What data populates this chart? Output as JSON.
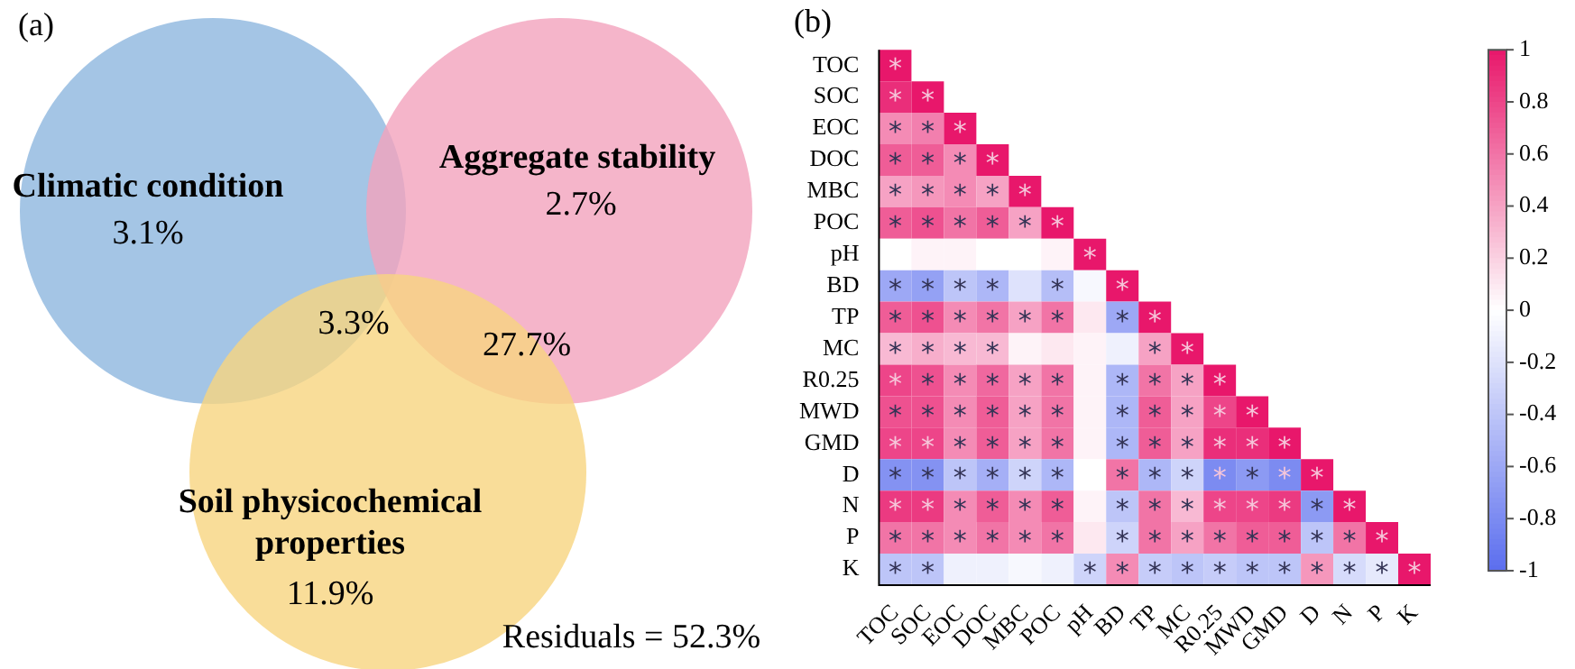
{
  "chart_data": [
    {
      "type": "other",
      "title": "(a)",
      "annotations": [
        "Climatic condition",
        "3.1%",
        "Aggregate stability",
        "2.7%",
        "3.3%",
        "27.7%",
        "Soil physicochemical properties",
        "11.9%",
        "Residuals = 52.3%"
      ]
    },
    {
      "type": "heatmap",
      "title": "(b)",
      "categories": [
        "TOC",
        "SOC",
        "EOC",
        "DOC",
        "MBC",
        "POC",
        "pH",
        "BD",
        "TP",
        "MC",
        "R0.25",
        "MWD",
        "GMD",
        "D",
        "N",
        "P",
        "K"
      ],
      "y_categories": [
        "TOC",
        "SOC",
        "EOC",
        "DOC",
        "MBC",
        "POC",
        "pH",
        "BD",
        "TP",
        "MC",
        "R0.25",
        "MWD",
        "GMD",
        "D",
        "N",
        "P",
        "K"
      ],
      "cells": [
        [
          1,
          null,
          null,
          null,
          null,
          null,
          null,
          null,
          null,
          null,
          null,
          null,
          null,
          null,
          null,
          null,
          null
        ],
        [
          0.9,
          1,
          null,
          null,
          null,
          null,
          null,
          null,
          null,
          null,
          null,
          null,
          null,
          null,
          null,
          null,
          null
        ],
        [
          0.5,
          0.55,
          1,
          null,
          null,
          null,
          null,
          null,
          null,
          null,
          null,
          null,
          null,
          null,
          null,
          null,
          null
        ],
        [
          0.7,
          0.7,
          0.5,
          1,
          null,
          null,
          null,
          null,
          null,
          null,
          null,
          null,
          null,
          null,
          null,
          null,
          null
        ],
        [
          0.4,
          0.45,
          0.5,
          0.4,
          1,
          null,
          null,
          null,
          null,
          null,
          null,
          null,
          null,
          null,
          null,
          null,
          null
        ],
        [
          0.7,
          0.75,
          0.6,
          0.7,
          0.4,
          1,
          null,
          null,
          null,
          null,
          null,
          null,
          null,
          null,
          null,
          null,
          null
        ],
        [
          0,
          0.05,
          0.05,
          0,
          0,
          0.05,
          1,
          null,
          null,
          null,
          null,
          null,
          null,
          null,
          null,
          null,
          null
        ],
        [
          -0.6,
          -0.65,
          -0.4,
          -0.5,
          -0.2,
          -0.45,
          -0.05,
          1,
          null,
          null,
          null,
          null,
          null,
          null,
          null,
          null,
          null
        ],
        [
          0.7,
          0.75,
          0.5,
          0.6,
          0.4,
          0.6,
          0.1,
          -0.6,
          1,
          null,
          null,
          null,
          null,
          null,
          null,
          null,
          null
        ],
        [
          0.3,
          0.35,
          0.3,
          0.3,
          0.05,
          0.1,
          0.05,
          -0.1,
          0.4,
          1,
          null,
          null,
          null,
          null,
          null,
          null,
          null
        ],
        [
          0.8,
          0.75,
          0.5,
          0.65,
          0.4,
          0.6,
          0.05,
          -0.5,
          0.6,
          0.4,
          1,
          null,
          null,
          null,
          null,
          null,
          null
        ],
        [
          0.75,
          0.75,
          0.5,
          0.7,
          0.4,
          0.6,
          0.05,
          -0.5,
          0.7,
          0.4,
          0.8,
          1,
          null,
          null,
          null,
          null,
          null
        ],
        [
          0.8,
          0.8,
          0.5,
          0.7,
          0.4,
          0.6,
          0.05,
          -0.5,
          0.7,
          0.4,
          0.9,
          0.9,
          1,
          null,
          null,
          null,
          null
        ],
        [
          -0.75,
          -0.75,
          -0.4,
          -0.55,
          -0.3,
          -0.5,
          0,
          0.6,
          -0.5,
          -0.3,
          -0.8,
          -0.7,
          -0.8,
          1,
          null,
          null,
          null
        ],
        [
          0.85,
          0.85,
          0.5,
          0.7,
          0.5,
          0.7,
          0.05,
          -0.4,
          0.6,
          0.3,
          0.8,
          0.8,
          0.85,
          -0.7,
          1,
          null,
          null
        ],
        [
          0.6,
          0.6,
          0.5,
          0.6,
          0.5,
          0.6,
          0.1,
          -0.3,
          0.6,
          0.4,
          0.6,
          0.7,
          0.7,
          -0.4,
          0.6,
          1,
          null
        ],
        [
          -0.4,
          -0.4,
          -0.1,
          -0.1,
          -0.05,
          -0.1,
          -0.3,
          0.5,
          -0.35,
          -0.4,
          -0.35,
          -0.4,
          -0.4,
          0.45,
          -0.25,
          -0.15,
          1
        ]
      ],
      "cell_labels": [
        [
          "*",
          null,
          null,
          null,
          null,
          null,
          null,
          null,
          null,
          null,
          null,
          null,
          null,
          null,
          null,
          null,
          null
        ],
        [
          "*",
          "*",
          null,
          null,
          null,
          null,
          null,
          null,
          null,
          null,
          null,
          null,
          null,
          null,
          null,
          null,
          null
        ],
        [
          "*",
          "*",
          "*",
          null,
          null,
          null,
          null,
          null,
          null,
          null,
          null,
          null,
          null,
          null,
          null,
          null,
          null
        ],
        [
          "*",
          "*",
          "*",
          "*",
          null,
          null,
          null,
          null,
          null,
          null,
          null,
          null,
          null,
          null,
          null,
          null,
          null
        ],
        [
          "*",
          "*",
          "*",
          "*",
          "*",
          null,
          null,
          null,
          null,
          null,
          null,
          null,
          null,
          null,
          null,
          null,
          null
        ],
        [
          "*",
          "*",
          "*",
          "*",
          "*",
          "*",
          null,
          null,
          null,
          null,
          null,
          null,
          null,
          null,
          null,
          null,
          null
        ],
        [
          null,
          null,
          null,
          null,
          null,
          null,
          "*",
          null,
          null,
          null,
          null,
          null,
          null,
          null,
          null,
          null,
          null
        ],
        [
          "*",
          "*",
          "*",
          "*",
          null,
          "*",
          null,
          "*",
          null,
          null,
          null,
          null,
          null,
          null,
          null,
          null,
          null
        ],
        [
          "*",
          "*",
          "*",
          "*",
          "*",
          "*",
          null,
          "*",
          "*",
          null,
          null,
          null,
          null,
          null,
          null,
          null,
          null
        ],
        [
          "*",
          "*",
          "*",
          "*",
          null,
          null,
          null,
          null,
          "*",
          "*",
          null,
          null,
          null,
          null,
          null,
          null,
          null
        ],
        [
          "*",
          "*",
          "*",
          "*",
          "*",
          "*",
          null,
          "*",
          "*",
          "*",
          "*",
          null,
          null,
          null,
          null,
          null,
          null
        ],
        [
          "*",
          "*",
          "*",
          "*",
          "*",
          "*",
          null,
          "*",
          "*",
          "*",
          "*",
          "*",
          null,
          null,
          null,
          null,
          null
        ],
        [
          "*",
          "*",
          "*",
          "*",
          "*",
          "*",
          null,
          "*",
          "*",
          "*",
          "*",
          "*",
          "*",
          null,
          null,
          null,
          null
        ],
        [
          "*",
          "*",
          "*",
          "*",
          "*",
          "*",
          null,
          "*",
          "*",
          "*",
          "*",
          "*",
          "*",
          "*",
          null,
          null,
          null
        ],
        [
          "*",
          "*",
          "*",
          "*",
          "*",
          "*",
          null,
          "*",
          "*",
          "*",
          "*",
          "*",
          "*",
          "*",
          "*",
          null,
          null
        ],
        [
          "*",
          "*",
          "*",
          "*",
          "*",
          "*",
          null,
          "*",
          "*",
          "*",
          "*",
          "*",
          "*",
          "*",
          "*",
          "*",
          null
        ],
        [
          "*",
          "*",
          null,
          null,
          null,
          null,
          "*",
          "*",
          "*",
          "*",
          "*",
          "*",
          "*",
          "*",
          "*",
          "*",
          "*"
        ]
      ],
      "clim": [
        -1,
        1
      ],
      "cticks": [
        -1,
        -0.8,
        -0.6,
        -0.4,
        -0.2,
        0,
        0.2,
        0.4,
        0.6,
        0.8,
        1
      ]
    }
  ]
}
